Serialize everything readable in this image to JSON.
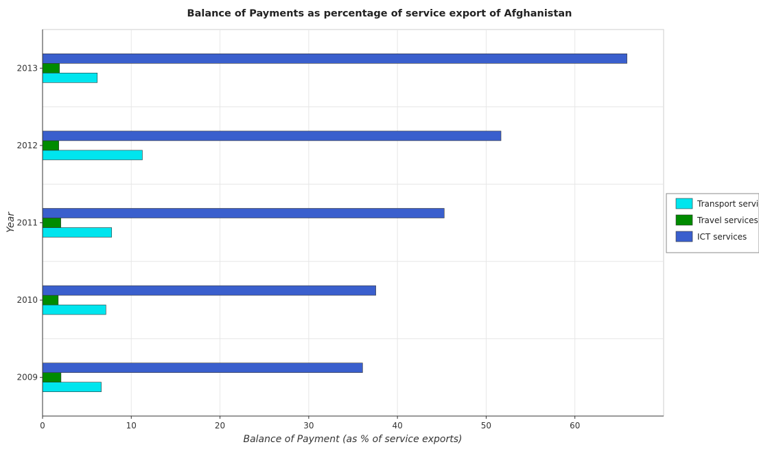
{
  "chart_data": {
    "type": "bar",
    "orientation": "horizontal",
    "title": "Balance of Payments as percentage of service export of Afghanistan",
    "xlabel": "Balance of Payment (as % of service exports)",
    "ylabel": "Year",
    "categories": [
      "2009",
      "2010",
      "2011",
      "2012",
      "2013"
    ],
    "series": [
      {
        "name": "Transport services",
        "color": "#00e5ee",
        "values": [
          6.62,
          7.14,
          7.79,
          11.25,
          6.17
        ]
      },
      {
        "name": "Travel services",
        "color": "#008b00",
        "values": [
          2.08,
          1.77,
          2.06,
          1.83,
          1.91
        ]
      },
      {
        "name": "ICT services",
        "color": "#3a5fcd",
        "values": [
          36.07,
          37.56,
          45.27,
          51.67,
          65.87
        ]
      }
    ],
    "xlim": [
      0,
      70
    ],
    "xticks": [
      0,
      10,
      20,
      30,
      40,
      50,
      60
    ],
    "grid": true,
    "legend": "right"
  }
}
